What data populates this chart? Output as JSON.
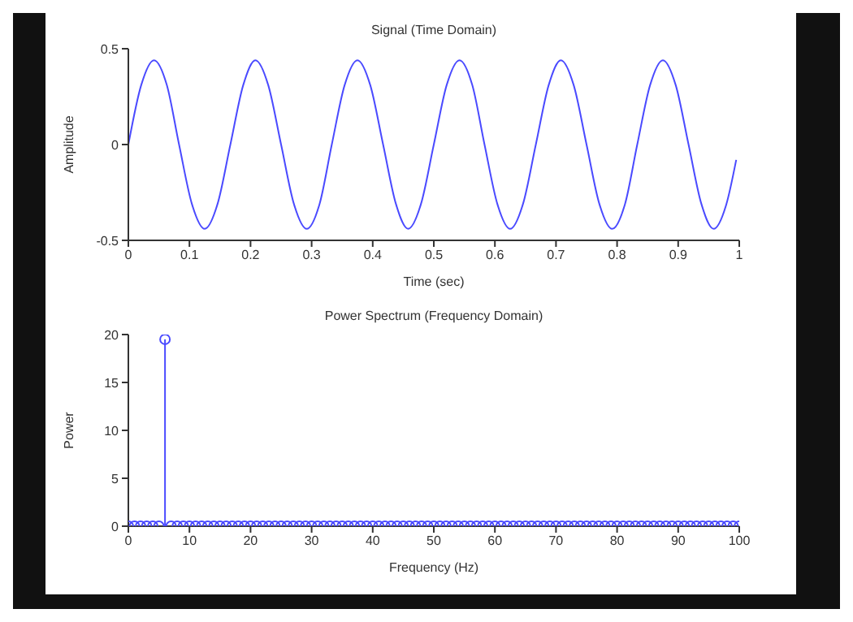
{
  "chart_data": [
    {
      "type": "line",
      "title": "Signal (Time Domain)",
      "xlabel": "Time (sec)",
      "ylabel": "Amplitude",
      "x": [
        0,
        0.021,
        0.042,
        0.063,
        0.083,
        0.104,
        0.125,
        0.146,
        0.167,
        0.188,
        0.208,
        0.229,
        0.25,
        0.271,
        0.292,
        0.313,
        0.333,
        0.354,
        0.375,
        0.396,
        0.417,
        0.438,
        0.458,
        0.479,
        0.5,
        0.521,
        0.542,
        0.563,
        0.583,
        0.604,
        0.625,
        0.646,
        0.667,
        0.688,
        0.708,
        0.729,
        0.75,
        0.771,
        0.792,
        0.813,
        0.833,
        0.854,
        0.875,
        0.896,
        0.917,
        0.938,
        0.958,
        0.979,
        0.995
      ],
      "series": [
        {
          "color": "#4a4aff",
          "values": [
            0,
            0.31,
            0.44,
            0.31,
            0,
            -0.31,
            -0.44,
            -0.31,
            0,
            0.31,
            0.44,
            0.31,
            0,
            -0.31,
            -0.44,
            -0.31,
            0,
            0.31,
            0.44,
            0.31,
            0,
            -0.31,
            -0.44,
            -0.31,
            0,
            0.31,
            0.44,
            0.31,
            0,
            -0.31,
            -0.44,
            -0.31,
            0,
            0.31,
            0.44,
            0.31,
            0,
            -0.31,
            -0.44,
            -0.31,
            0,
            0.31,
            0.44,
            0.31,
            0,
            -0.31,
            -0.44,
            -0.31,
            -0.08
          ]
        }
      ],
      "xlim": [
        0,
        1
      ],
      "xticks": [
        0,
        0.1,
        0.2,
        0.3,
        0.4,
        0.5,
        0.6,
        0.7,
        0.8,
        0.9,
        1
      ],
      "ylim": [
        -0.5,
        0.5
      ],
      "yticks": [
        -0.5,
        0,
        0.5
      ],
      "grid": false,
      "legend": false,
      "marker": "none",
      "line_style": "solid"
    },
    {
      "type": "lollipop",
      "title": "Power Spectrum (Frequency Domain)",
      "xlabel": "Frequency (Hz)",
      "ylabel": "Power",
      "x": [
        0,
        1,
        2,
        3,
        4,
        5,
        6,
        7,
        8,
        9,
        10,
        11,
        12,
        13,
        14,
        15,
        16,
        17,
        18,
        19,
        20,
        21,
        22,
        23,
        24,
        25,
        26,
        27,
        28,
        29,
        30,
        31,
        32,
        33,
        34,
        35,
        36,
        37,
        38,
        39,
        40,
        41,
        42,
        43,
        44,
        45,
        46,
        47,
        48,
        49,
        50,
        51,
        52,
        53,
        54,
        55,
        56,
        57,
        58,
        59,
        60,
        61,
        62,
        63,
        64,
        65,
        66,
        67,
        68,
        69,
        70,
        71,
        72,
        73,
        74,
        75,
        76,
        77,
        78,
        79,
        80,
        81,
        82,
        83,
        84,
        85,
        86,
        87,
        88,
        89,
        90,
        91,
        92,
        93,
        94,
        95,
        96,
        97,
        98,
        99,
        100
      ],
      "series": [
        {
          "color": "#4a4aff",
          "values": [
            0,
            0,
            0,
            0,
            0,
            0,
            19.5,
            0,
            0,
            0,
            0,
            0,
            0,
            0,
            0,
            0,
            0,
            0,
            0,
            0,
            0,
            0,
            0,
            0,
            0,
            0,
            0,
            0,
            0,
            0,
            0,
            0,
            0,
            0,
            0,
            0,
            0,
            0,
            0,
            0,
            0,
            0,
            0,
            0,
            0,
            0,
            0,
            0,
            0,
            0,
            0,
            0,
            0,
            0,
            0,
            0,
            0,
            0,
            0,
            0,
            0,
            0,
            0,
            0,
            0,
            0,
            0,
            0,
            0,
            0,
            0,
            0,
            0,
            0,
            0,
            0,
            0,
            0,
            0,
            0,
            0,
            0,
            0,
            0,
            0,
            0,
            0,
            0,
            0,
            0,
            0,
            0,
            0,
            0,
            0,
            0,
            0,
            0,
            0,
            0,
            0
          ]
        }
      ],
      "xlim": [
        0,
        100
      ],
      "xticks": [
        0,
        10,
        20,
        30,
        40,
        50,
        60,
        70,
        80,
        90,
        100
      ],
      "ylim": [
        0,
        20
      ],
      "yticks": [
        0,
        5,
        10,
        15,
        20
      ],
      "grid": false,
      "legend": false,
      "marker": "circle"
    }
  ]
}
